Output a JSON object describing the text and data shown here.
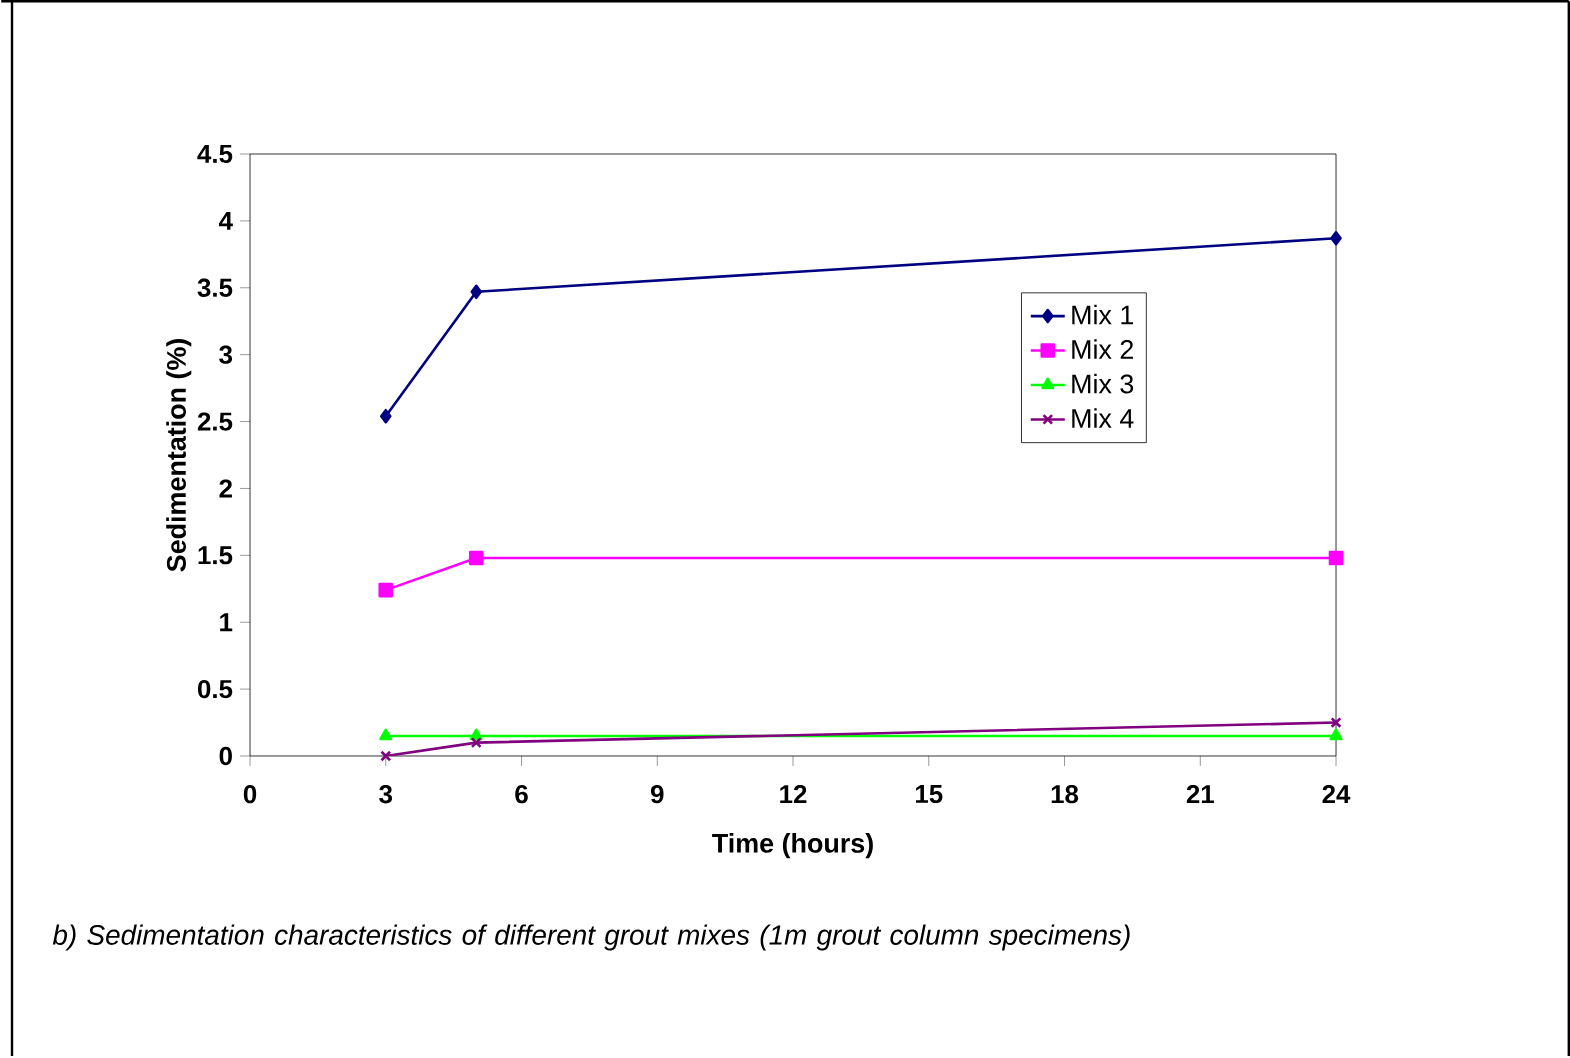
{
  "chart_data": {
    "type": "line",
    "xlabel": "Time (hours)",
    "ylabel": "Sedimentation (%)",
    "x": [
      3,
      5,
      24
    ],
    "series": [
      {
        "name": "Mix 1",
        "color": "#000080",
        "marker": "diamond",
        "values": [
          2.54,
          3.47,
          3.87
        ]
      },
      {
        "name": "Mix 2",
        "color": "#ff00ff",
        "marker": "square",
        "values": [
          1.24,
          1.48,
          1.48
        ]
      },
      {
        "name": "Mix 3",
        "color": "#00ff00",
        "marker": "triangle",
        "values": [
          0.15,
          0.15,
          0.15
        ]
      },
      {
        "name": "Mix 4",
        "color": "#800080",
        "marker": "cross",
        "values": [
          0,
          0.1,
          0.25
        ]
      }
    ],
    "xlim": [
      0,
      24
    ],
    "xticks": [
      0,
      3,
      6,
      9,
      12,
      15,
      18,
      21,
      24
    ],
    "ylim": [
      0,
      4.5
    ],
    "yticks": [
      0,
      0.5,
      1,
      1.5,
      2,
      2.5,
      3,
      3.5,
      4,
      4.5
    ],
    "grid": false,
    "legend": "right",
    "line_style": "solid",
    "annotations": [
      "b) Sedimentation characteristics of different grout mixes (1m grout column specimens)"
    ]
  }
}
